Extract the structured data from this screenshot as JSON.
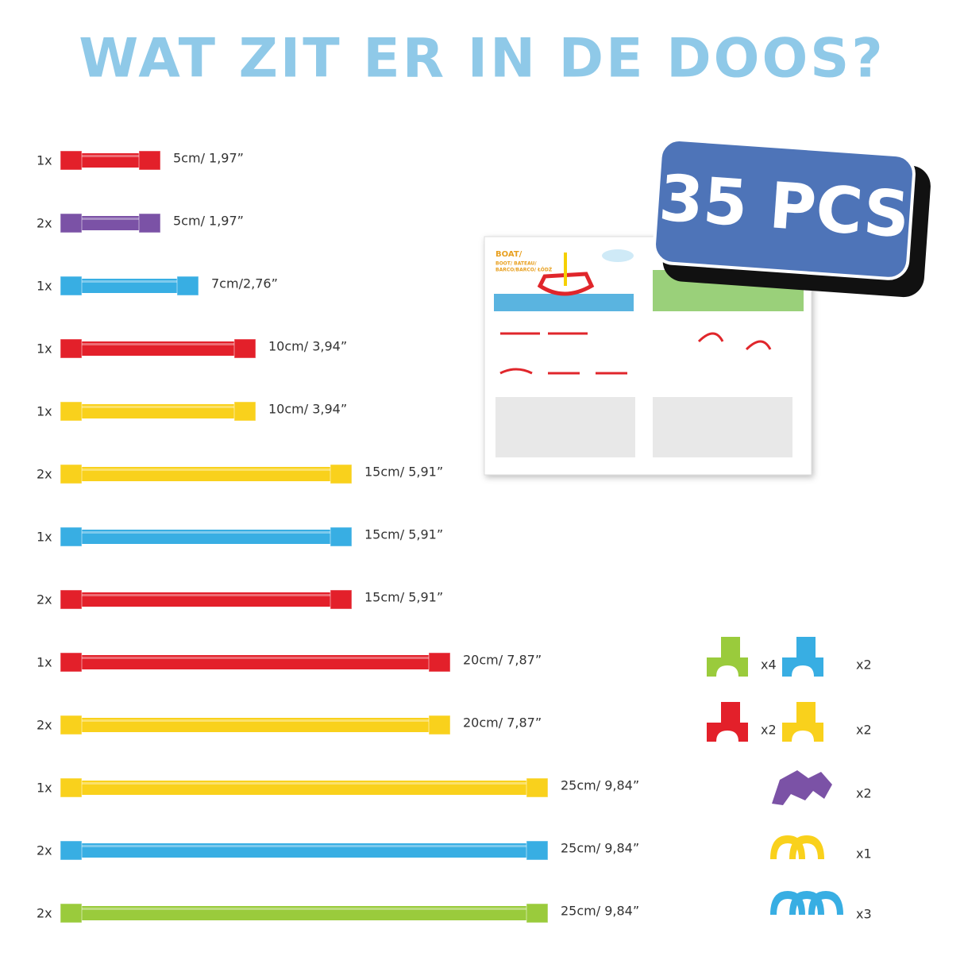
{
  "title": "WAT ZIT ER IN DE DOOS?",
  "badge": "35 PCS",
  "rods": [
    {
      "quantity": "1x",
      "size": "5cm/ 1,97”"
    },
    {
      "quantity": "2x",
      "size": "5cm/ 1,97”"
    },
    {
      "quantity": "1x",
      "size": "7cm/2,76”"
    },
    {
      "quantity": "1x",
      "size": "10cm/ 3,94”"
    },
    {
      "quantity": "1x",
      "size": "10cm/ 3,94”"
    },
    {
      "quantity": "2x",
      "size": "15cm/ 5,91”"
    },
    {
      "quantity": "1x",
      "size": "15cm/ 5,91”"
    },
    {
      "quantity": "2x",
      "size": "15cm/ 5,91”"
    },
    {
      "quantity": "1x",
      "size": "20cm/ 7,87”"
    },
    {
      "quantity": "2x",
      "size": "20cm/ 7,87”"
    },
    {
      "quantity": "1x",
      "size": "25cm/ 9,84”"
    },
    {
      "quantity": "2x",
      "size": "25cm/ 9,84”"
    },
    {
      "quantity": "2x",
      "size": "25cm/ 9,84”"
    }
  ],
  "connectors": [
    {
      "quantity": "x4"
    },
    {
      "quantity": "x2"
    },
    {
      "quantity": "x2"
    },
    {
      "quantity": "x2"
    },
    {
      "quantity": "x2"
    },
    {
      "quantity": "x1"
    },
    {
      "quantity": "x3"
    }
  ],
  "booklet": {
    "title": "BOAT/",
    "subtitle": "BOOT/ BATEAU/",
    "subtitle2": "BARCO/BARCO/ ŁÓDŹ"
  }
}
